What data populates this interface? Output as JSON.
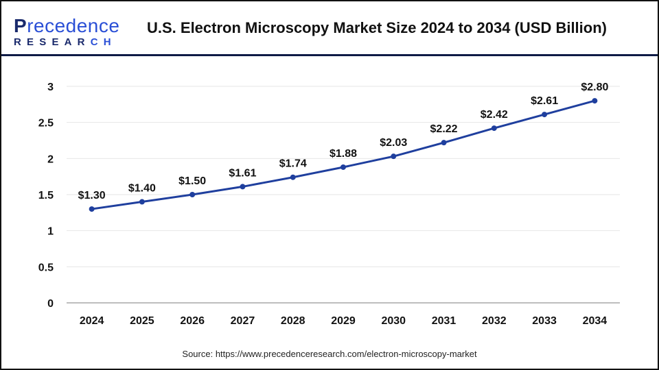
{
  "brand": {
    "logo_top_first": "P",
    "logo_top_rest": "recedence",
    "logo_bottom_main": "RESEAR",
    "logo_bottom_accent": "CH"
  },
  "header": {
    "title": "U.S. Electron Microscopy Market Size 2024 to 2034 (USD Billion)"
  },
  "colors": {
    "line": "#1f3f9e",
    "grid": "#e6e6e6",
    "axis": "#bdbdbd",
    "header_rule": "#0e1a45"
  },
  "footer": {
    "source": "Source: https://www.precedenceresearch.com/electron-microscopy-market"
  },
  "chart_data": {
    "type": "line",
    "title": "U.S. Electron Microscopy Market Size 2024 to 2034 (USD Billion)",
    "xlabel": "",
    "ylabel": "",
    "categories": [
      "2024",
      "2025",
      "2026",
      "2027",
      "2028",
      "2029",
      "2030",
      "2031",
      "2032",
      "2033",
      "2034"
    ],
    "series": [
      {
        "name": "U.S. Electron Microscopy Market Size (USD Billion)",
        "values": [
          1.3,
          1.4,
          1.5,
          1.61,
          1.74,
          1.88,
          2.03,
          2.22,
          2.42,
          2.61,
          2.8
        ],
        "labels": [
          "$1.30",
          "$1.40",
          "$1.50",
          "$1.61",
          "$1.74",
          "$1.88",
          "$2.03",
          "$2.22",
          "$2.42",
          "$2.61",
          "$2.80"
        ]
      }
    ],
    "ylim": [
      0,
      3
    ],
    "yticks": [
      0,
      0.5,
      1,
      1.5,
      2,
      2.5,
      3
    ],
    "ytick_labels": [
      "0",
      "0.5",
      "1",
      "1.5",
      "2",
      "2.5",
      "3"
    ],
    "grid": true,
    "legend": "none"
  }
}
